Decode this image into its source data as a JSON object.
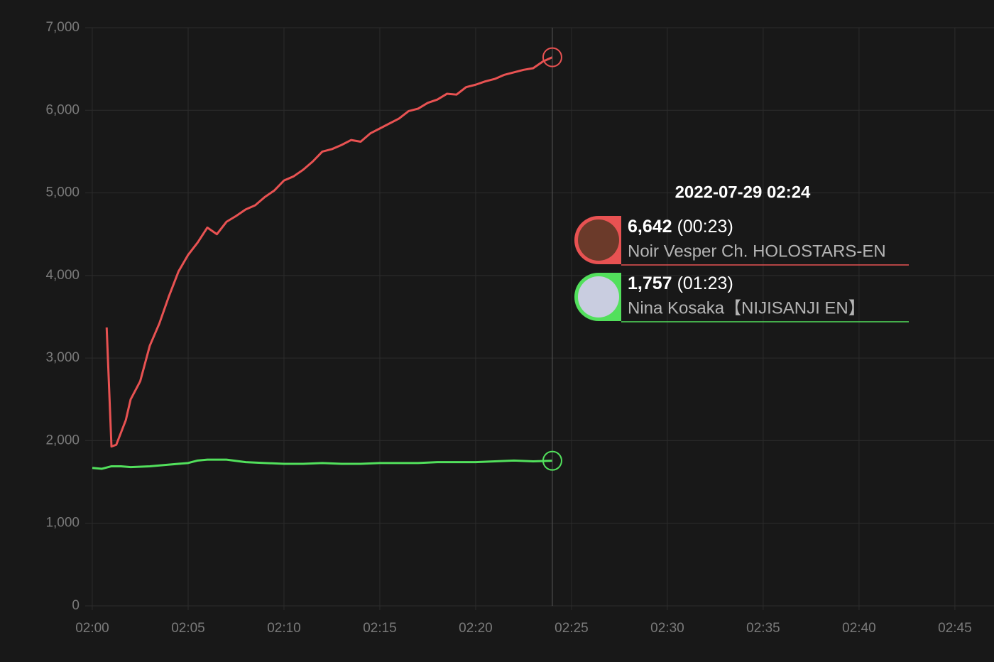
{
  "chart_data": {
    "type": "line",
    "xlim": [
      -0.37,
      47.04
    ],
    "ylim": [
      0,
      7000
    ],
    "xticks": [
      {
        "value": 0,
        "label": "02:00"
      },
      {
        "value": 5,
        "label": "02:05"
      },
      {
        "value": 10,
        "label": "02:10"
      },
      {
        "value": 15,
        "label": "02:15"
      },
      {
        "value": 20,
        "label": "02:20"
      },
      {
        "value": 25,
        "label": "02:25"
      },
      {
        "value": 30,
        "label": "02:30"
      },
      {
        "value": 35,
        "label": "02:35"
      },
      {
        "value": 40,
        "label": "02:40"
      },
      {
        "value": 45,
        "label": "02:45"
      }
    ],
    "yticks": [
      0,
      {
        "value": 1000,
        "label": "1,000"
      },
      {
        "value": 2000,
        "label": "2,000"
      },
      {
        "value": 3000,
        "label": "3,000"
      },
      {
        "value": 4000,
        "label": "4,000"
      },
      {
        "value": 5000,
        "label": "5,000"
      },
      {
        "value": 6000,
        "label": "6,000"
      },
      {
        "value": 7000,
        "label": "7,000"
      }
    ],
    "grid": true,
    "series": [
      {
        "name": "Noir Vesper Ch. HOLOSTARS-EN",
        "color": "#e85252",
        "x": [
          0.75,
          1.0,
          1.25,
          1.75,
          2.0,
          2.5,
          3.0,
          3.5,
          4.0,
          4.5,
          5.0,
          5.5,
          6.0,
          6.5,
          7.0,
          7.5,
          8.0,
          8.5,
          9.0,
          9.5,
          10.0,
          10.5,
          11.0,
          11.5,
          12.0,
          12.5,
          13.0,
          13.5,
          14.0,
          14.5,
          15.0,
          15.5,
          16.0,
          16.5,
          17.0,
          17.5,
          18.0,
          18.5,
          19.0,
          19.5,
          20.0,
          20.5,
          21.0,
          21.5,
          22.0,
          22.5,
          23.0,
          23.5,
          24.0
        ],
        "values": [
          3370,
          1930,
          1950,
          2250,
          2500,
          2720,
          3150,
          3420,
          3750,
          4050,
          4250,
          4400,
          4580,
          4500,
          4650,
          4720,
          4800,
          4850,
          4950,
          5030,
          5150,
          5200,
          5280,
          5380,
          5500,
          5530,
          5580,
          5640,
          5620,
          5720,
          5780,
          5840,
          5900,
          5990,
          6020,
          6090,
          6130,
          6200,
          6190,
          6280,
          6310,
          6350,
          6380,
          6430,
          6460,
          6490,
          6510,
          6590,
          6642
        ]
      },
      {
        "name": "Nina Kosaka【NIJISANJI EN】",
        "color": "#52e05c",
        "x": [
          0,
          0.5,
          1.0,
          1.5,
          2,
          3,
          4,
          5,
          5.5,
          6,
          7,
          8,
          9,
          10,
          11,
          12,
          13,
          14,
          15,
          16,
          17,
          18,
          19,
          20,
          21,
          22,
          23,
          24
        ],
        "values": [
          1670,
          1660,
          1690,
          1690,
          1680,
          1690,
          1710,
          1730,
          1760,
          1770,
          1770,
          1740,
          1730,
          1720,
          1720,
          1730,
          1720,
          1720,
          1730,
          1730,
          1730,
          1740,
          1740,
          1740,
          1750,
          1760,
          1750,
          1757
        ]
      }
    ],
    "tooltip": {
      "title": "2022-07-29 02:24",
      "items": [
        {
          "label": "6,642",
          "duration": "(00:23)"
        },
        {
          "label": "1,757",
          "duration": "(01:23)"
        }
      ]
    }
  }
}
